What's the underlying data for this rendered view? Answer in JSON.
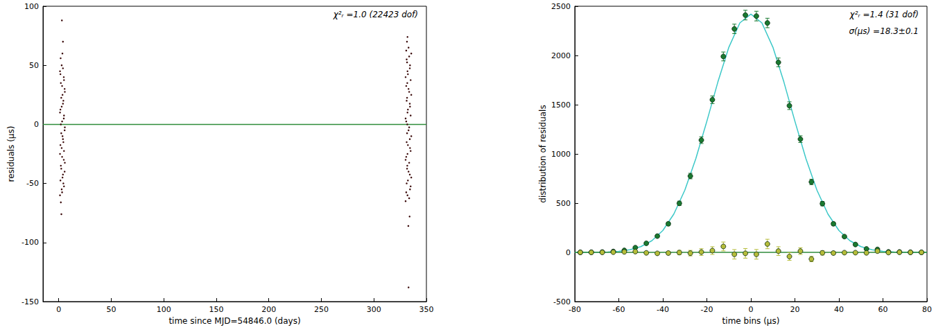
{
  "chart_data": [
    {
      "type": "scatter",
      "xlabel": "time since MJD=54846.0 (days)",
      "ylabel": "residuals (μs)",
      "xlim": [
        -15,
        350
      ],
      "xticks": [
        0,
        50,
        100,
        150,
        200,
        250,
        300,
        350
      ],
      "ylim": [
        -150,
        100
      ],
      "yticks": [
        -150,
        -100,
        -50,
        0,
        50,
        100
      ],
      "grid": false,
      "annotations": [
        "χ²ᵣ =1.0 (22423 dof)"
      ],
      "series": [
        {
          "type": "scatter",
          "marker": "circle",
          "color": "#3b0a0a",
          "x": [
            1.2,
            2.8,
            4.4,
            3.6,
            5.6,
            2.0,
            4.8,
            1.2,
            2.8,
            4.4,
            3.6,
            5.6,
            2.0,
            4.8,
            1.2,
            2.8,
            4.4,
            3.6,
            5.6,
            2.0,
            4.8,
            1.2,
            2.8,
            3.2,
            5.0,
            1.6,
            4.0,
            2.4,
            5.8,
            3.2,
            5.0,
            1.6,
            4.0,
            2.4,
            5.8,
            3.2,
            5.0,
            1.6,
            4.0,
            2.4,
            5.8,
            3.2,
            5.0,
            1.6,
            4.0,
            3.0,
            2.5,
            4.0,
            2.0,
            3.5,
            1.8,
            330.2,
            332.0,
            334.4,
            331.2,
            335.6,
            333.0,
            331.8,
            330.2,
            332.0,
            334.4,
            331.2,
            335.6,
            333.0,
            331.8,
            330.2,
            332.0,
            334.4,
            331.2,
            335.6,
            333.0,
            331.8,
            330.2,
            332.0,
            334.4,
            331.2,
            335.6,
            333.0,
            333.6,
            330.8,
            335.0,
            332.4,
            334.2,
            331.6,
            333.6,
            330.8,
            335.0,
            332.4,
            334.2,
            331.6,
            333.6,
            330.8,
            335.0,
            332.4,
            334.2,
            331.6,
            333.6,
            330.8,
            335.0,
            332.4,
            334.2,
            331.6,
            333.6,
            330.8,
            333.0,
            332.8,
            332.0,
            334.0,
            331.5
          ],
          "values": [
            -60,
            -55,
            -50,
            -45,
            -40,
            -35,
            -30,
            -25,
            -20,
            -15,
            -10,
            -5,
            0,
            5,
            10,
            15,
            20,
            25,
            30,
            35,
            40,
            45,
            50,
            -57.5,
            -52.5,
            -47.5,
            -42.5,
            -37.5,
            -32.5,
            -27.5,
            -22.5,
            -17.5,
            -12.5,
            -7.5,
            -2.5,
            2.5,
            7.5,
            12.5,
            17.5,
            22.5,
            27.5,
            32.5,
            37.5,
            42.5,
            47.5,
            88,
            -76,
            70,
            -66,
            60,
            56,
            -65,
            -60,
            -55,
            -50,
            -45,
            -40,
            -35,
            -30,
            -25,
            -20,
            -15,
            -10,
            -5,
            0,
            5,
            10,
            15,
            20,
            25,
            30,
            35,
            40,
            45,
            50,
            55,
            60,
            65,
            -62.5,
            -57.5,
            -52.5,
            -47.5,
            -42.5,
            -37.5,
            -32.5,
            -27.5,
            -22.5,
            -17.5,
            -12.5,
            -7.5,
            -2.5,
            2.5,
            7.5,
            12.5,
            17.5,
            22.5,
            27.5,
            32.5,
            37.5,
            42.5,
            47.5,
            52.5,
            57.5,
            62.5,
            -138,
            -86,
            74,
            -78,
            70
          ]
        },
        {
          "type": "line",
          "color": "#2e8b3a",
          "x": [
            -15,
            350
          ],
          "values": [
            0,
            0
          ]
        }
      ]
    },
    {
      "type": "scatter",
      "xlabel": "time bins (μs)",
      "ylabel": "distribution of residuals",
      "xlim": [
        -80,
        80
      ],
      "xticks": [
        -80,
        -60,
        -40,
        -20,
        0,
        20,
        40,
        60,
        80
      ],
      "ylim": [
        -500,
        2500
      ],
      "yticks": [
        -500,
        0,
        500,
        1000,
        1500,
        2000,
        2500
      ],
      "grid": false,
      "annotations": [
        "χ²ᵣ =1.4 (31 dof)",
        "σ(μs) =18.3±0.1"
      ],
      "series": [
        {
          "type": "line",
          "color": "#3cc8c8",
          "x": [
            -80,
            -75,
            -70,
            -65,
            -60,
            -55,
            -50,
            -45,
            -40,
            -35,
            -30,
            -25,
            -20,
            -15,
            -10,
            -5,
            0,
            5,
            10,
            15,
            20,
            25,
            30,
            35,
            40,
            45,
            50,
            55,
            60,
            65,
            70,
            75,
            80
          ],
          "values": [
            0,
            0,
            2,
            4,
            11,
            27,
            58,
            118,
            222,
            389,
            632,
            952,
            1332,
            1730,
            2084,
            2331,
            2420,
            2331,
            2084,
            1730,
            1332,
            952,
            632,
            389,
            222,
            118,
            58,
            27,
            11,
            4,
            2,
            0,
            0
          ]
        },
        {
          "type": "line",
          "color": "#2e8b3a",
          "x": [
            -80,
            80
          ],
          "values": [
            0,
            0
          ]
        },
        {
          "type": "scatter",
          "marker": "circle",
          "color": "#1a7a30",
          "x": [
            -77.5,
            -72.5,
            -67.5,
            -62.5,
            -57.5,
            -52.5,
            -47.5,
            -42.5,
            -37.5,
            -32.5,
            -27.5,
            -22.5,
            -17.5,
            -12.5,
            -7.5,
            -2.5,
            2.5,
            7.5,
            12.5,
            17.5,
            22.5,
            27.5,
            32.5,
            37.5,
            42.5,
            47.5,
            52.5,
            57.5,
            62.5,
            67.5,
            72.5,
            77.5
          ],
          "values": [
            0,
            1,
            3,
            9,
            20,
            48,
            92,
            165,
            290,
            498,
            775,
            1140,
            1550,
            1990,
            2270,
            2410,
            2400,
            2330,
            1930,
            1490,
            1150,
            715,
            495,
            290,
            160,
            80,
            35,
            30,
            5,
            4,
            1,
            0
          ],
          "errors": [
            1,
            1,
            2,
            3,
            4,
            7,
            10,
            13,
            17,
            22,
            28,
            34,
            39,
            45,
            48,
            49,
            49,
            48,
            44,
            39,
            34,
            27,
            22,
            17,
            13,
            9,
            6,
            5,
            2,
            2,
            1,
            1
          ]
        },
        {
          "type": "scatter",
          "marker": "circle",
          "color": "#b5bd3a",
          "x": [
            -77.5,
            -72.5,
            -67.5,
            -62.5,
            -57.5,
            -52.5,
            -47.5,
            -42.5,
            -37.5,
            -32.5,
            -27.5,
            -22.5,
            -17.5,
            -12.5,
            -7.5,
            -2.5,
            2.5,
            7.5,
            12.5,
            17.5,
            22.5,
            27.5,
            32.5,
            37.5,
            42.5,
            47.5,
            52.5,
            57.5,
            62.5,
            67.5,
            72.5,
            77.5
          ],
          "values": [
            0,
            0,
            0,
            2,
            5,
            8,
            -5,
            -10,
            -7,
            -2,
            -8,
            3,
            18,
            60,
            -20,
            -10,
            -20,
            85,
            13,
            -42,
            13,
            -68,
            -5,
            -7,
            -3,
            -3,
            -5,
            13,
            -2,
            1,
            0,
            0
          ],
          "errors": [
            1,
            1,
            2,
            3,
            4,
            7,
            10,
            13,
            17,
            22,
            28,
            34,
            39,
            45,
            48,
            49,
            49,
            48,
            44,
            39,
            34,
            27,
            22,
            17,
            13,
            9,
            6,
            5,
            2,
            2,
            1,
            1
          ]
        }
      ]
    }
  ]
}
